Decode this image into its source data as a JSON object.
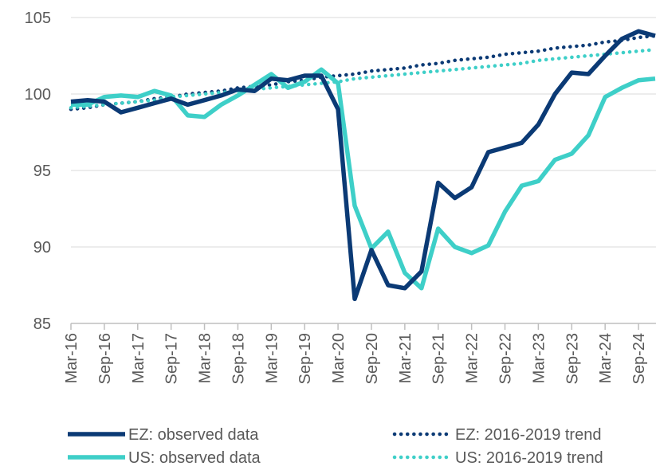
{
  "chart_data": {
    "type": "line",
    "categories": [
      "Mar-16",
      null,
      "Sep-16",
      null,
      "Mar-17",
      null,
      "Sep-17",
      null,
      "Mar-18",
      null,
      "Sep-18",
      null,
      "Mar-19",
      null,
      "Sep-19",
      null,
      "Mar-20",
      null,
      "Sep-20",
      null,
      "Mar-21",
      null,
      "Sep-21",
      null,
      "Mar-22",
      null,
      "Sep-22",
      null,
      "Mar-23",
      null,
      "Sep-23",
      null,
      "Mar-24",
      null,
      "Sep-24",
      null
    ],
    "series": [
      {
        "name": "EZ: observed data",
        "color": "#0b3a75",
        "style": "solid",
        "values": [
          99.5,
          99.6,
          99.5,
          98.8,
          99.1,
          99.4,
          99.7,
          99.3,
          99.6,
          99.9,
          100.3,
          100.2,
          101.0,
          100.9,
          101.2,
          101.2,
          99.0,
          86.6,
          89.8,
          87.5,
          87.3,
          88.4,
          94.2,
          93.2,
          93.9,
          96.2,
          96.5,
          96.8,
          98.0,
          100.0,
          101.4,
          101.3,
          102.5,
          103.6,
          104.1,
          103.8
        ]
      },
      {
        "name": "EZ: 2016-2019 trend",
        "color": "#0b3a75",
        "style": "dotted",
        "values": [
          99.0,
          99.1,
          99.3,
          99.4,
          99.5,
          99.7,
          99.8,
          100.0,
          100.1,
          100.2,
          100.4,
          100.5,
          100.6,
          100.8,
          100.9,
          101.1,
          101.2,
          101.3,
          101.5,
          101.6,
          101.7,
          101.9,
          102.0,
          102.2,
          102.3,
          102.4,
          102.6,
          102.7,
          102.8,
          103.0,
          103.1,
          103.2,
          103.4,
          103.5,
          103.7,
          103.8
        ]
      },
      {
        "name": "US: observed data",
        "color": "#3ecfc8",
        "style": "solid",
        "values": [
          99.3,
          99.3,
          99.8,
          99.9,
          99.8,
          100.2,
          99.9,
          98.6,
          98.5,
          99.3,
          99.9,
          100.6,
          101.3,
          100.4,
          100.8,
          101.6,
          100.7,
          92.7,
          89.9,
          91.0,
          88.3,
          87.3,
          91.2,
          90.0,
          89.6,
          90.1,
          92.3,
          94.0,
          94.3,
          95.7,
          96.1,
          97.3,
          99.8,
          100.4,
          100.9,
          101.0
        ]
      },
      {
        "name": "US: 2016-2019 trend",
        "color": "#3ecfc8",
        "style": "dotted",
        "values": [
          99.1,
          99.2,
          99.3,
          99.4,
          99.5,
          99.6,
          99.8,
          99.9,
          100.0,
          100.1,
          100.2,
          100.3,
          100.4,
          100.5,
          100.6,
          100.7,
          100.8,
          101.0,
          101.1,
          101.2,
          101.3,
          101.4,
          101.5,
          101.6,
          101.7,
          101.8,
          101.9,
          102.0,
          102.2,
          102.3,
          102.4,
          102.5,
          102.6,
          102.7,
          102.8,
          102.9
        ]
      }
    ],
    "ylim": [
      85,
      105
    ],
    "yticks": [
      85,
      90,
      95,
      100,
      105
    ],
    "grid": true,
    "legend": "bottom"
  }
}
